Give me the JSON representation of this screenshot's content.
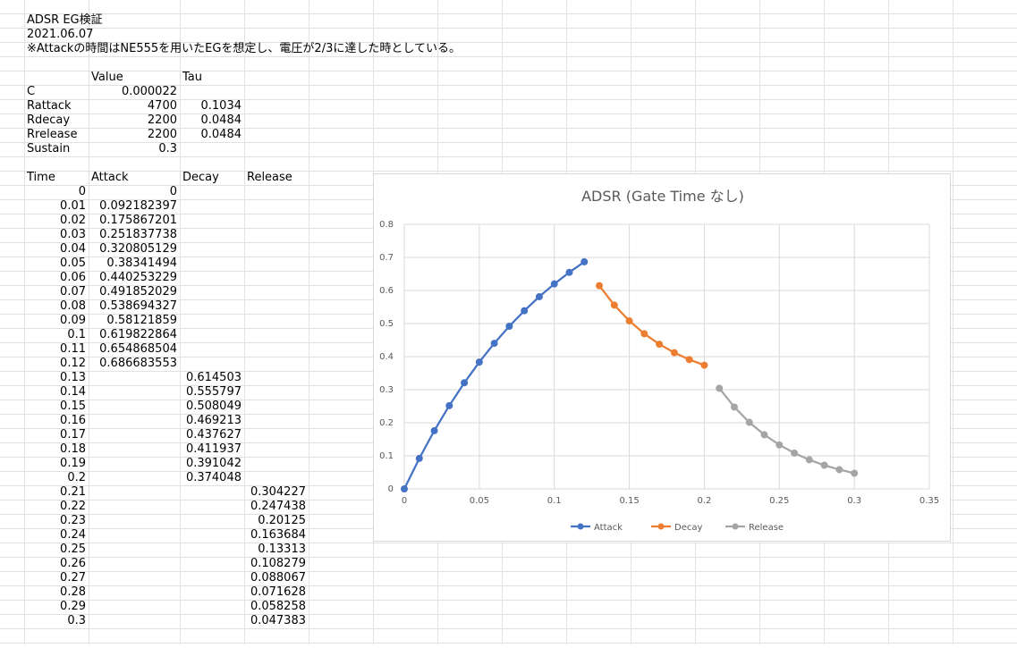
{
  "sheet": {
    "title": "ADSR EG検証",
    "date": "2021.06.07",
    "note": "※Attackの時間はNE555を用いたEGを想定し、電圧が2/3に達した時としている。",
    "param_headers": [
      "Value",
      "Tau"
    ],
    "params": [
      {
        "name": "C",
        "value": "0.000022",
        "tau": ""
      },
      {
        "name": "Rattack",
        "value": "4700",
        "tau": "0.1034"
      },
      {
        "name": "Rdecay",
        "value": "2200",
        "tau": "0.0484"
      },
      {
        "name": "Rrelease",
        "value": "2200",
        "tau": "0.0484"
      },
      {
        "name": "Sustain",
        "value": "0.3",
        "tau": ""
      }
    ],
    "table_headers": [
      "Time",
      "Attack",
      "Decay",
      "Release"
    ],
    "rows": [
      [
        "0",
        "0",
        "",
        ""
      ],
      [
        "0.01",
        "0.092182397",
        "",
        ""
      ],
      [
        "0.02",
        "0.175867201",
        "",
        ""
      ],
      [
        "0.03",
        "0.251837738",
        "",
        ""
      ],
      [
        "0.04",
        "0.320805129",
        "",
        ""
      ],
      [
        "0.05",
        "0.38341494",
        "",
        ""
      ],
      [
        "0.06",
        "0.440253229",
        "",
        ""
      ],
      [
        "0.07",
        "0.491852029",
        "",
        ""
      ],
      [
        "0.08",
        "0.538694327",
        "",
        ""
      ],
      [
        "0.09",
        "0.58121859",
        "",
        ""
      ],
      [
        "0.1",
        "0.619822864",
        "",
        ""
      ],
      [
        "0.11",
        "0.654868504",
        "",
        ""
      ],
      [
        "0.12",
        "0.686683553",
        "",
        ""
      ],
      [
        "0.13",
        "",
        "0.614503",
        ""
      ],
      [
        "0.14",
        "",
        "0.555797",
        ""
      ],
      [
        "0.15",
        "",
        "0.508049",
        ""
      ],
      [
        "0.16",
        "",
        "0.469213",
        ""
      ],
      [
        "0.17",
        "",
        "0.437627",
        ""
      ],
      [
        "0.18",
        "",
        "0.411937",
        ""
      ],
      [
        "0.19",
        "",
        "0.391042",
        ""
      ],
      [
        "0.2",
        "",
        "0.374048",
        ""
      ],
      [
        "0.21",
        "",
        "",
        "0.304227"
      ],
      [
        "0.22",
        "",
        "",
        "0.247438"
      ],
      [
        "0.23",
        "",
        "",
        "0.20125"
      ],
      [
        "0.24",
        "",
        "",
        "0.163684"
      ],
      [
        "0.25",
        "",
        "",
        "0.13313"
      ],
      [
        "0.26",
        "",
        "",
        "0.108279"
      ],
      [
        "0.27",
        "",
        "",
        "0.088067"
      ],
      [
        "0.28",
        "",
        "",
        "0.071628"
      ],
      [
        "0.29",
        "",
        "",
        "0.058258"
      ],
      [
        "0.3",
        "",
        "",
        "0.047383"
      ]
    ]
  },
  "chart_data": {
    "type": "line",
    "title": "ADSR (Gate Time なし)",
    "xlabel": "",
    "ylabel": "",
    "xlim": [
      0,
      0.35
    ],
    "ylim": [
      0,
      0.8
    ],
    "xticks": [
      "0",
      "0.05",
      "0.1",
      "0.15",
      "0.2",
      "0.25",
      "0.3",
      "0.35"
    ],
    "yticks": [
      "0",
      "0.1",
      "0.2",
      "0.3",
      "0.4",
      "0.5",
      "0.6",
      "0.7",
      "0.8"
    ],
    "grid": true,
    "legend_position": "bottom",
    "series": [
      {
        "name": "Attack",
        "color": "#4472c4",
        "x": [
          0,
          0.01,
          0.02,
          0.03,
          0.04,
          0.05,
          0.06,
          0.07,
          0.08,
          0.09,
          0.1,
          0.11,
          0.12
        ],
        "y": [
          0,
          0.092182397,
          0.175867201,
          0.251837738,
          0.320805129,
          0.38341494,
          0.440253229,
          0.491852029,
          0.538694327,
          0.58121859,
          0.619822864,
          0.654868504,
          0.686683553
        ]
      },
      {
        "name": "Decay",
        "color": "#ed7d31",
        "x": [
          0.13,
          0.14,
          0.15,
          0.16,
          0.17,
          0.18,
          0.19,
          0.2
        ],
        "y": [
          0.614503,
          0.555797,
          0.508049,
          0.469213,
          0.437627,
          0.411937,
          0.391042,
          0.374048
        ]
      },
      {
        "name": "Release",
        "color": "#a5a5a5",
        "x": [
          0.21,
          0.22,
          0.23,
          0.24,
          0.25,
          0.26,
          0.27,
          0.28,
          0.29,
          0.3
        ],
        "y": [
          0.304227,
          0.247438,
          0.20125,
          0.163684,
          0.13313,
          0.108279,
          0.088067,
          0.071628,
          0.058258,
          0.047383
        ]
      }
    ]
  }
}
